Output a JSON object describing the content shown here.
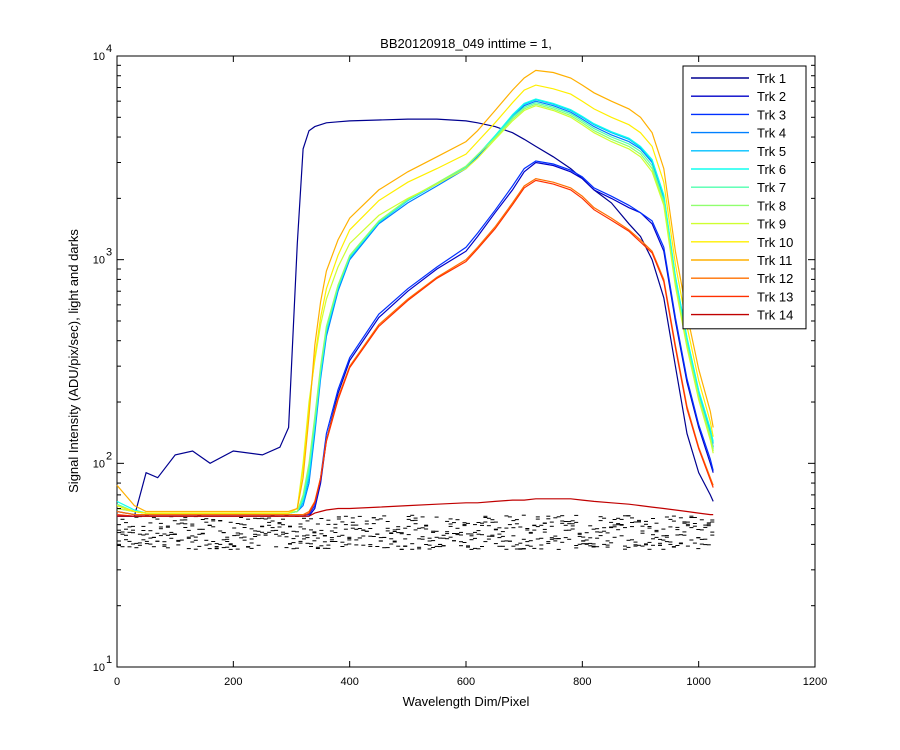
{
  "chart_data": {
    "type": "line",
    "title": "BB20120918_049 inttime = 1,",
    "xlabel": "Wavelength Dim/Pixel",
    "ylabel": "Signal Intensity (ADU/pix/sec), light and darks",
    "xlim": [
      0,
      1200
    ],
    "ylim": [
      10,
      10000
    ],
    "yscale": "log",
    "x_ticks": [
      "0",
      "200",
      "400",
      "600",
      "800",
      "1000",
      "1200"
    ],
    "y_ticks": [
      {
        "value": 10,
        "base": "10",
        "exp": "1"
      },
      {
        "value": 100,
        "base": "10",
        "exp": "2"
      },
      {
        "value": 1000,
        "base": "10",
        "exp": "3"
      },
      {
        "value": 10000,
        "base": "10",
        "exp": "4"
      }
    ],
    "grid": false,
    "legend_position": "top-right",
    "x": [
      0,
      30,
      50,
      70,
      100,
      130,
      160,
      200,
      250,
      280,
      295,
      310,
      320,
      330,
      340,
      350,
      360,
      380,
      400,
      450,
      500,
      550,
      600,
      620,
      650,
      680,
      700,
      720,
      750,
      780,
      800,
      820,
      850,
      880,
      900,
      920,
      940,
      960,
      980,
      1000,
      1020,
      1025
    ],
    "series": [
      {
        "name": "Trk 1",
        "color": "#000090",
        "values": [
          55,
          55,
          90,
          85,
          110,
          115,
          100,
          115,
          110,
          120,
          150,
          1200,
          3500,
          4300,
          4500,
          4600,
          4700,
          4750,
          4800,
          4850,
          4900,
          4900,
          4800,
          4700,
          4500,
          4200,
          3900,
          3600,
          3200,
          2800,
          2500,
          2200,
          1900,
          1500,
          1300,
          1000,
          650,
          300,
          140,
          90,
          70,
          65
        ]
      },
      {
        "name": "Trk 2",
        "color": "#0000c8",
        "values": [
          55,
          55,
          55,
          55,
          55,
          55,
          55,
          55,
          55,
          55,
          55,
          55,
          55,
          55,
          60,
          80,
          130,
          220,
          320,
          520,
          700,
          900,
          1100,
          1300,
          1700,
          2200,
          2700,
          3000,
          2900,
          2700,
          2500,
          2200,
          2000,
          1800,
          1700,
          1500,
          1100,
          500,
          250,
          150,
          100,
          90
        ]
      },
      {
        "name": "Trk 3",
        "color": "#0030ff",
        "values": [
          58,
          56,
          56,
          56,
          56,
          56,
          56,
          56,
          56,
          56,
          56,
          56,
          56,
          56,
          62,
          85,
          140,
          230,
          330,
          540,
          720,
          920,
          1150,
          1350,
          1750,
          2300,
          2800,
          3050,
          2950,
          2750,
          2550,
          2250,
          2050,
          1850,
          1700,
          1550,
          1150,
          520,
          260,
          155,
          105,
          92
        ]
      },
      {
        "name": "Trk 4",
        "color": "#0080ff",
        "values": [
          60,
          58,
          57,
          57,
          57,
          57,
          57,
          57,
          57,
          57,
          57,
          58,
          62,
          80,
          140,
          260,
          420,
          700,
          1000,
          1500,
          1900,
          2300,
          2800,
          3200,
          4000,
          5000,
          5700,
          6000,
          5700,
          5300,
          4900,
          4500,
          4100,
          3800,
          3500,
          3000,
          2000,
          800,
          400,
          220,
          140,
          120
        ]
      },
      {
        "name": "Trk 5",
        "color": "#00c0ff",
        "values": [
          62,
          58,
          57,
          57,
          57,
          57,
          57,
          57,
          57,
          57,
          57,
          58,
          64,
          85,
          150,
          270,
          440,
          720,
          1020,
          1520,
          1950,
          2350,
          2850,
          3250,
          4050,
          5100,
          5800,
          6100,
          5800,
          5400,
          5000,
          4600,
          4200,
          3900,
          3550,
          3050,
          2050,
          820,
          410,
          225,
          145,
          125
        ]
      },
      {
        "name": "Trk 6",
        "color": "#10ffef",
        "values": [
          65,
          59,
          57,
          57,
          57,
          57,
          57,
          57,
          57,
          57,
          57,
          58,
          66,
          90,
          155,
          280,
          450,
          730,
          1030,
          1530,
          1960,
          2360,
          2860,
          3260,
          4060,
          5150,
          5850,
          6150,
          5850,
          5450,
          5050,
          4650,
          4250,
          3950,
          3600,
          3100,
          2080,
          830,
          415,
          228,
          148,
          128
        ]
      },
      {
        "name": "Trk 7",
        "color": "#50ffaf",
        "values": [
          63,
          58,
          57,
          57,
          57,
          57,
          57,
          57,
          57,
          57,
          57,
          58,
          68,
          95,
          160,
          290,
          460,
          740,
          1040,
          1540,
          1970,
          2370,
          2870,
          3270,
          4000,
          5000,
          5600,
          5900,
          5600,
          5200,
          4800,
          4400,
          4000,
          3700,
          3400,
          2900,
          1950,
          780,
          390,
          215,
          138,
          118
        ]
      },
      {
        "name": "Trk 8",
        "color": "#90ff6f",
        "values": [
          62,
          58,
          57,
          57,
          57,
          57,
          57,
          57,
          57,
          57,
          57,
          58,
          70,
          100,
          170,
          300,
          470,
          750,
          1050,
          1550,
          1980,
          2380,
          2880,
          3280,
          3950,
          4900,
          5500,
          5800,
          5500,
          5100,
          4700,
          4300,
          3900,
          3600,
          3300,
          2800,
          1900,
          760,
          380,
          210,
          135,
          115
        ]
      },
      {
        "name": "Trk 9",
        "color": "#cfff30",
        "values": [
          60,
          58,
          57,
          57,
          57,
          57,
          57,
          57,
          57,
          57,
          57,
          60,
          100,
          200,
          320,
          480,
          640,
          920,
          1200,
          1650,
          2000,
          2350,
          2800,
          3150,
          3900,
          4800,
          5400,
          5700,
          5400,
          5000,
          4600,
          4200,
          3800,
          3500,
          3200,
          2700,
          1850,
          740,
          370,
          205,
          130,
          112
        ]
      },
      {
        "name": "Trk 10",
        "color": "#ffef00",
        "values": [
          62,
          58,
          57,
          57,
          57,
          57,
          57,
          57,
          57,
          57,
          57,
          60,
          95,
          190,
          330,
          520,
          720,
          1050,
          1400,
          1950,
          2400,
          2800,
          3300,
          3800,
          4700,
          5900,
          6800,
          7200,
          6900,
          6500,
          6000,
          5500,
          5000,
          4600,
          4200,
          3600,
          2400,
          950,
          470,
          255,
          160,
          135
        ]
      },
      {
        "name": "Trk 11",
        "color": "#ffb000",
        "values": [
          78,
          62,
          58,
          58,
          58,
          58,
          58,
          58,
          58,
          58,
          58,
          60,
          85,
          170,
          380,
          620,
          880,
          1250,
          1600,
          2200,
          2700,
          3200,
          3800,
          4300,
          5400,
          6800,
          7800,
          8500,
          8300,
          7800,
          7200,
          6600,
          6000,
          5500,
          5000,
          4200,
          2800,
          1100,
          540,
          290,
          180,
          150
        ]
      },
      {
        "name": "Trk 12",
        "color": "#ff7000",
        "values": [
          58,
          56,
          56,
          56,
          56,
          56,
          56,
          56,
          56,
          56,
          56,
          56,
          56,
          58,
          65,
          85,
          130,
          210,
          300,
          480,
          640,
          820,
          1000,
          1150,
          1450,
          1900,
          2300,
          2500,
          2400,
          2250,
          2050,
          1800,
          1600,
          1400,
          1250,
          1100,
          800,
          380,
          190,
          120,
          85,
          78
        ]
      },
      {
        "name": "Trk 13",
        "color": "#ff3000",
        "values": [
          56,
          55,
          55,
          55,
          55,
          55,
          55,
          55,
          55,
          55,
          55,
          55,
          55,
          57,
          64,
          84,
          128,
          205,
          295,
          470,
          630,
          810,
          980,
          1130,
          1420,
          1860,
          2250,
          2450,
          2350,
          2200,
          2000,
          1760,
          1560,
          1380,
          1220,
          1080,
          780,
          370,
          185,
          118,
          83,
          76
        ]
      },
      {
        "name": "Trk 14",
        "color": "#c00000",
        "values": [
          55,
          55,
          55,
          55,
          55,
          55,
          55,
          55,
          55,
          55,
          55,
          55,
          55,
          55,
          57,
          58,
          59,
          60,
          60,
          61,
          62,
          63,
          64,
          64,
          65,
          66,
          66,
          67,
          67,
          67,
          66,
          65,
          64,
          63,
          62,
          61,
          60,
          59,
          58,
          57,
          56,
          56
        ]
      }
    ],
    "darks": {
      "color": "#000000",
      "min": 38,
      "max": 56
    }
  }
}
